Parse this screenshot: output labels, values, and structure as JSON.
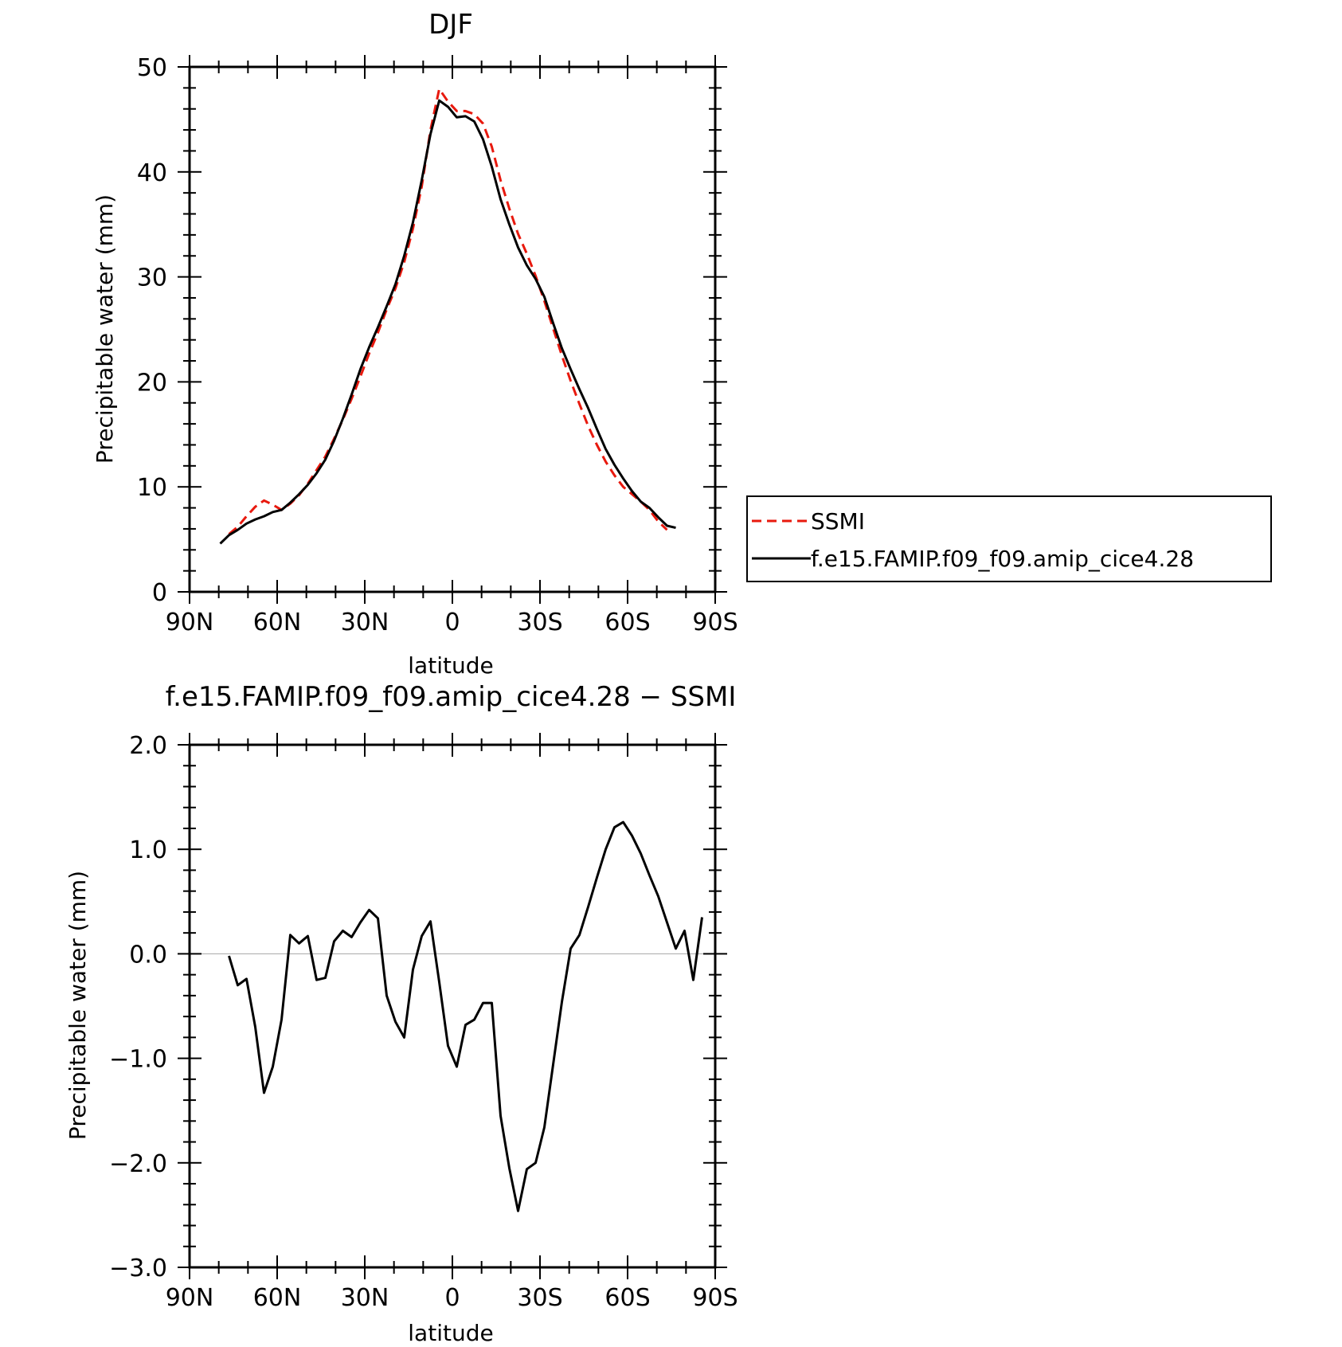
{
  "chart_data": [
    {
      "type": "line",
      "title": "DJF",
      "xlabel": "latitude",
      "ylabel": "Precipitable water (mm)",
      "xlim": [
        -90,
        90
      ],
      "ylim": [
        0,
        50
      ],
      "x_tick_labels": [
        "90N",
        "60N",
        "30N",
        "0",
        "30S",
        "60S",
        "90S"
      ],
      "y_tick_labels": [
        "0",
        "10",
        "20",
        "30",
        "40",
        "50"
      ],
      "legend_position": "right",
      "series": [
        {
          "name": "SSMI",
          "color": "#e8190e",
          "style": "dashed",
          "points": [
            [
              -76.5,
              5.5
            ],
            [
              -73.5,
              6.2
            ],
            [
              -70.5,
              7.2
            ],
            [
              -67.5,
              8.1
            ],
            [
              -64.5,
              8.7
            ],
            [
              -61.5,
              8.3
            ],
            [
              -58.5,
              7.8
            ],
            [
              -55.5,
              8.4
            ],
            [
              -52.5,
              9.2
            ],
            [
              -49.5,
              10.3
            ],
            [
              -46.5,
              11.6
            ],
            [
              -43.5,
              12.9
            ],
            [
              -40.5,
              14.6
            ],
            [
              -37.5,
              16.4
            ],
            [
              -34.5,
              18.4
            ],
            [
              -31.5,
              20.5
            ],
            [
              -28.5,
              22.7
            ],
            [
              -25.5,
              24.7
            ],
            [
              -22.5,
              26.9
            ],
            [
              -19.5,
              28.9
            ],
            [
              -16.5,
              31.4
            ],
            [
              -13.5,
              34.6
            ],
            [
              -10.5,
              38.6
            ],
            [
              -7.5,
              44.0
            ],
            [
              -4.5,
              47.9
            ],
            [
              -1.5,
              46.7
            ],
            [
              1.5,
              45.8
            ],
            [
              4.5,
              45.8
            ],
            [
              7.5,
              45.5
            ],
            [
              10.5,
              44.6
            ],
            [
              13.5,
              42.4
            ],
            [
              16.5,
              39.2
            ],
            [
              19.5,
              36.5
            ],
            [
              22.5,
              34.1
            ],
            [
              25.5,
              32.2
            ],
            [
              28.5,
              30.1
            ],
            [
              31.5,
              27.7
            ],
            [
              34.5,
              25.1
            ],
            [
              37.5,
              22.5
            ],
            [
              40.5,
              20.1
            ],
            [
              43.5,
              17.9
            ],
            [
              46.5,
              15.8
            ],
            [
              49.5,
              14.0
            ],
            [
              52.5,
              12.4
            ],
            [
              55.5,
              11.1
            ],
            [
              58.5,
              10.0
            ],
            [
              61.5,
              9.3
            ],
            [
              64.5,
              8.6
            ],
            [
              67.5,
              7.8
            ],
            [
              70.5,
              6.7
            ],
            [
              73.5,
              5.9
            ]
          ]
        },
        {
          "name": "f.e15.FAMIP.f09_f09.amip_cice4.28",
          "color": "#000000",
          "style": "solid",
          "points": [
            [
              -79.5,
              4.6
            ],
            [
              -76.5,
              5.4
            ],
            [
              -73.5,
              5.9
            ],
            [
              -70.5,
              6.5
            ],
            [
              -67.5,
              6.9
            ],
            [
              -64.5,
              7.2
            ],
            [
              -61.5,
              7.6
            ],
            [
              -58.5,
              7.8
            ],
            [
              -55.5,
              8.5
            ],
            [
              -52.5,
              9.3
            ],
            [
              -49.5,
              10.2
            ],
            [
              -46.5,
              11.3
            ],
            [
              -43.5,
              12.6
            ],
            [
              -40.5,
              14.4
            ],
            [
              -37.5,
              16.5
            ],
            [
              -34.5,
              18.8
            ],
            [
              -31.5,
              21.2
            ],
            [
              -28.5,
              23.3
            ],
            [
              -25.5,
              25.2
            ],
            [
              -22.5,
              27.2
            ],
            [
              -19.5,
              29.3
            ],
            [
              -16.5,
              32.0
            ],
            [
              -13.5,
              35.2
            ],
            [
              -10.5,
              39.2
            ],
            [
              -7.5,
              43.6
            ],
            [
              -4.5,
              46.8
            ],
            [
              -1.5,
              46.2
            ],
            [
              1.5,
              45.2
            ],
            [
              4.5,
              45.3
            ],
            [
              7.5,
              44.8
            ],
            [
              10.5,
              43.1
            ],
            [
              13.5,
              40.5
            ],
            [
              16.5,
              37.4
            ],
            [
              19.5,
              35.0
            ],
            [
              22.5,
              32.8
            ],
            [
              25.5,
              31.1
            ],
            [
              28.5,
              29.8
            ],
            [
              31.5,
              28.1
            ],
            [
              34.5,
              25.6
            ],
            [
              37.5,
              23.2
            ],
            [
              40.5,
              21.2
            ],
            [
              43.5,
              19.3
            ],
            [
              46.5,
              17.5
            ],
            [
              49.5,
              15.5
            ],
            [
              52.5,
              13.6
            ],
            [
              55.5,
              12.1
            ],
            [
              58.5,
              10.8
            ],
            [
              61.5,
              9.6
            ],
            [
              64.5,
              8.6
            ],
            [
              67.5,
              8.0
            ],
            [
              70.5,
              7.1
            ],
            [
              73.5,
              6.3
            ],
            [
              76.5,
              6.1
            ]
          ]
        }
      ]
    },
    {
      "type": "line",
      "title": "f.e15.FAMIP.f09_f09.amip_cice4.28 − SSMI",
      "xlabel": "latitude",
      "ylabel": "Precipitable water (mm)",
      "xlim": [
        -90,
        90
      ],
      "ylim": [
        -3.0,
        2.0
      ],
      "x_tick_labels": [
        "90N",
        "60N",
        "30N",
        "0",
        "30S",
        "60S",
        "90S"
      ],
      "y_tick_labels": [
        "−3.0",
        "−2.0",
        "−1.0",
        "0.0",
        "1.0",
        "2.0"
      ],
      "series": [
        {
          "color": "#000000",
          "style": "solid",
          "points": [
            [
              -76.5,
              -0.02
            ],
            [
              -73.5,
              -0.3
            ],
            [
              -70.5,
              -0.24
            ],
            [
              -67.5,
              -0.7
            ],
            [
              -64.5,
              -1.33
            ],
            [
              -61.5,
              -1.08
            ],
            [
              -58.5,
              -0.63
            ],
            [
              -55.5,
              0.18
            ],
            [
              -52.5,
              0.1
            ],
            [
              -49.5,
              0.17
            ],
            [
              -46.5,
              -0.25
            ],
            [
              -43.5,
              -0.23
            ],
            [
              -40.5,
              0.12
            ],
            [
              -37.5,
              0.22
            ],
            [
              -34.5,
              0.16
            ],
            [
              -31.5,
              0.3
            ],
            [
              -28.5,
              0.42
            ],
            [
              -25.5,
              0.34
            ],
            [
              -22.5,
              -0.4
            ],
            [
              -19.5,
              -0.65
            ],
            [
              -16.5,
              -0.8
            ],
            [
              -13.5,
              -0.15
            ],
            [
              -10.5,
              0.17
            ],
            [
              -7.5,
              0.31
            ],
            [
              -4.5,
              -0.27
            ],
            [
              -1.5,
              -0.88
            ],
            [
              1.5,
              -1.08
            ],
            [
              4.5,
              -0.68
            ],
            [
              7.5,
              -0.63
            ],
            [
              10.5,
              -0.47
            ],
            [
              13.5,
              -0.47
            ],
            [
              16.5,
              -1.55
            ],
            [
              19.5,
              -2.05
            ],
            [
              22.5,
              -2.46
            ],
            [
              25.5,
              -2.06
            ],
            [
              28.5,
              -2.0
            ],
            [
              31.5,
              -1.66
            ],
            [
              34.5,
              -1.06
            ],
            [
              37.5,
              -0.46
            ],
            [
              40.5,
              0.05
            ],
            [
              43.5,
              0.18
            ],
            [
              46.5,
              0.45
            ],
            [
              49.5,
              0.73
            ],
            [
              52.5,
              1.0
            ],
            [
              55.5,
              1.21
            ],
            [
              58.5,
              1.26
            ],
            [
              61.5,
              1.13
            ],
            [
              64.5,
              0.96
            ],
            [
              67.5,
              0.75
            ],
            [
              70.5,
              0.55
            ],
            [
              73.5,
              0.3
            ],
            [
              76.5,
              0.05
            ],
            [
              79.5,
              0.22
            ],
            [
              82.5,
              -0.25
            ],
            [
              85.5,
              0.35
            ]
          ]
        }
      ]
    }
  ]
}
